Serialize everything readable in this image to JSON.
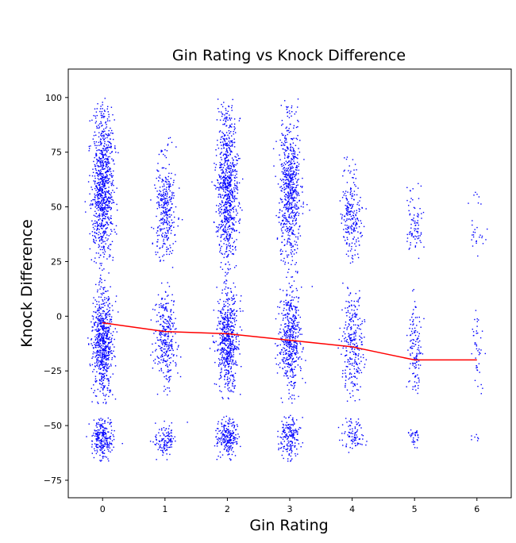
{
  "chart_data": {
    "type": "scatter",
    "title": "Gin Rating vs Knock Difference",
    "xlabel": "Gin Rating",
    "ylabel": "Knock Difference",
    "xlim": [
      -0.55,
      6.55
    ],
    "ylim": [
      -83,
      113
    ],
    "xticks": [
      0,
      1,
      2,
      3,
      4,
      5,
      6
    ],
    "yticks": [
      -75,
      -50,
      -25,
      0,
      25,
      50,
      75,
      100
    ],
    "grid": false,
    "legend": "none",
    "colors": {
      "points": "#0000ff",
      "trend": "#ff0000"
    },
    "scatter_clusters": [
      {
        "x": 0,
        "density": 1.0,
        "bands": [
          [
            28,
            88
          ],
          [
            -35,
            12
          ],
          [
            -64,
            -47
          ]
        ]
      },
      {
        "x": 1,
        "density": 0.55,
        "bands": [
          [
            28,
            70
          ],
          [
            -30,
            10
          ],
          [
            -64,
            -49
          ]
        ]
      },
      {
        "x": 2,
        "density": 0.9,
        "bands": [
          [
            28,
            88
          ],
          [
            -33,
            12
          ],
          [
            -64,
            -47
          ]
        ]
      },
      {
        "x": 3,
        "density": 0.75,
        "bands": [
          [
            28,
            88
          ],
          [
            -33,
            12
          ],
          [
            -64,
            -47
          ]
        ]
      },
      {
        "x": 4,
        "density": 0.45,
        "bands": [
          [
            28,
            62
          ],
          [
            -34,
            10
          ],
          [
            -62,
            -48
          ]
        ]
      },
      {
        "x": 5,
        "density": 0.22,
        "bands": [
          [
            28,
            52
          ],
          [
            -34,
            8
          ],
          [
            -60,
            -50
          ]
        ]
      },
      {
        "x": 6,
        "density": 0.08,
        "bands": [
          [
            28,
            48
          ],
          [
            -34,
            4
          ],
          [
            -58,
            -52
          ]
        ]
      }
    ],
    "trend_line": {
      "x": [
        0,
        0.5,
        1,
        1.5,
        2,
        2.5,
        3,
        3.5,
        4,
        4.5,
        5,
        5.5,
        6
      ],
      "y": [
        -3,
        -5,
        -7,
        -7.5,
        -8,
        -9.5,
        -11,
        -12.5,
        -14,
        -17,
        -20,
        -20,
        -20
      ]
    }
  }
}
